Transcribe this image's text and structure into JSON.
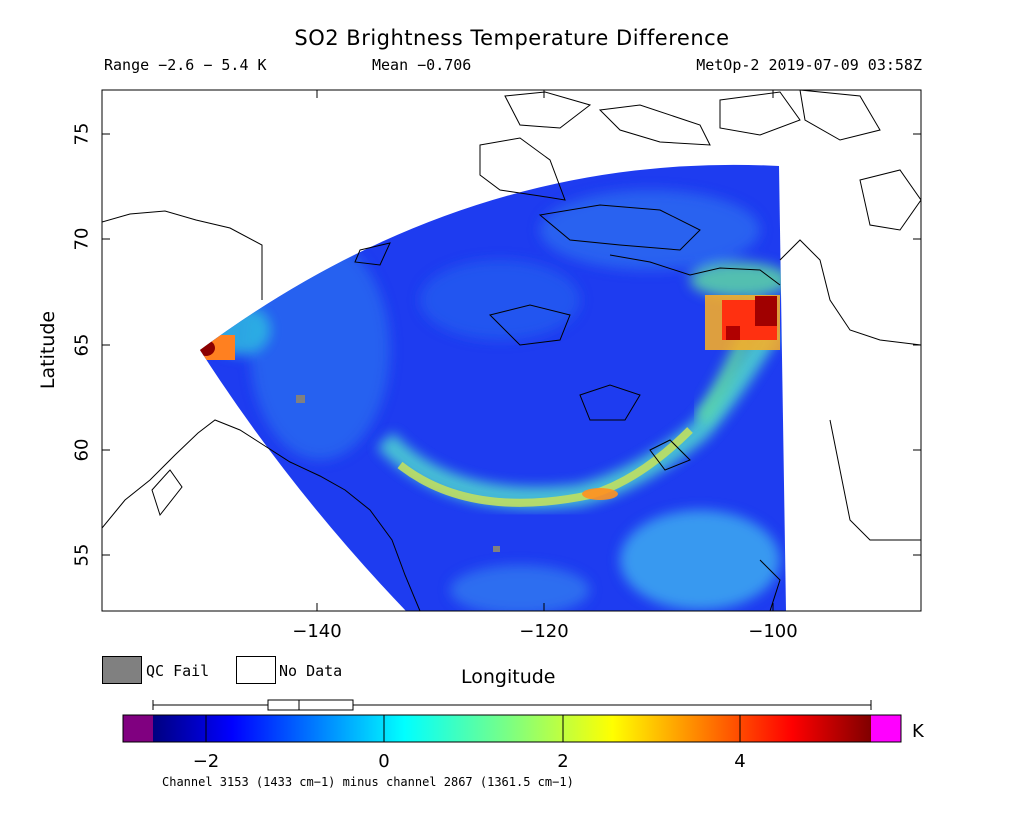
{
  "title": "SO2 Brightness Temperature Difference",
  "info": {
    "range": "Range −2.6 − 5.4 K",
    "mean": "Mean −0.706",
    "satellite": "MetOp-2 2019-07-09 03:58Z"
  },
  "axes": {
    "xlabel": "Longitude",
    "ylabel": "Latitude",
    "xticks": [
      "−140",
      "−120",
      "−100"
    ],
    "yticks": [
      "55",
      "60",
      "65",
      "70",
      "75"
    ],
    "xlim": [
      -158,
      -87
    ],
    "ylim": [
      52.2,
      77
    ]
  },
  "legend": {
    "qc_fail": "QC Fail",
    "no_data": "No Data",
    "qc_fail_color": "#808080",
    "no_data_color": "#ffffff"
  },
  "colorbar": {
    "ticks": [
      "−2",
      "0",
      "2",
      "4"
    ],
    "unit": "K",
    "caption": "Channel 3153 (1433 cm−1) minus channel 2867 (1361.5 cm−1)",
    "range": [
      -3,
      5.5
    ],
    "under_color": "#800080",
    "over_color": "#ff00ff",
    "boxplot": {
      "min": -2.6,
      "q1": -1.3,
      "median": -0.9,
      "q3": -0.3,
      "max": 5.4
    }
  },
  "colors": {
    "background": "#0030e0",
    "hot_spot": "#8b0000",
    "band": "#40e0e0"
  }
}
